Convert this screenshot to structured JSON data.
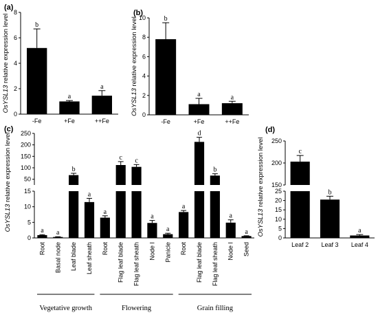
{
  "chart_data": [
    {
      "panel": "(a)",
      "type": "bar",
      "ylabel_italic": "OsYSL13",
      "ylabel_rest": " relative expression level",
      "categories": [
        "-Fe",
        "+Fe",
        "++Fe"
      ],
      "values": [
        5.2,
        1.0,
        1.45
      ],
      "errors": [
        1.5,
        0.07,
        0.4
      ],
      "significance": [
        "b",
        "a",
        "a"
      ],
      "ylim": [
        0,
        8
      ],
      "yticks": [
        "0",
        "2",
        "4",
        "6",
        "8"
      ]
    },
    {
      "panel": "(b)",
      "type": "bar",
      "ylabel_italic": "OsYSL13",
      "ylabel_rest": " relative expression level",
      "categories": [
        "-Fe",
        "+Fe",
        "++Fe"
      ],
      "values": [
        7.8,
        1.1,
        1.2
      ],
      "errors": [
        1.7,
        0.6,
        0.2
      ],
      "significance": [
        "b",
        "a",
        "a"
      ],
      "ylim": [
        0,
        10
      ],
      "yticks": [
        "0",
        "2",
        "4",
        "6",
        "8",
        "10"
      ]
    },
    {
      "panel": "(c)",
      "type": "bar",
      "axis_break": true,
      "ylabel_italic": "OsYSL13",
      "ylabel_rest": " relative expression level",
      "categories": [
        "Root",
        "Basal node",
        "Leaf blade",
        "Leaf sheath",
        "Root",
        "Flag leaf blade",
        "Flag leaf sheath",
        "Node I",
        "Panicle",
        "Root",
        "Flag leaf blade",
        "Flag leaf sheath",
        "Node I",
        "Seed"
      ],
      "values": [
        0.9,
        0.3,
        68,
        11.5,
        6.5,
        112,
        104,
        4.8,
        1.2,
        8.3,
        213,
        66,
        4.9,
        0.6
      ],
      "errors": [
        0.15,
        0.1,
        8,
        1.2,
        0.6,
        15,
        10,
        0.8,
        0.3,
        0.5,
        20,
        8,
        0.9,
        0.1
      ],
      "significance": [
        "a",
        "a",
        "b",
        "a",
        "a",
        "c",
        "c",
        "a",
        "a",
        "a",
        "d",
        "b",
        "a",
        "a"
      ],
      "ylim_lower": [
        0,
        15
      ],
      "yticks_lower": [
        "0",
        "5",
        "10",
        "15"
      ],
      "ylim_upper": [
        25,
        250
      ],
      "yticks_upper": [
        "50",
        "100",
        "150",
        "200",
        "250"
      ],
      "groups": [
        {
          "label": "Vegetative growth",
          "from": 0,
          "to": 3
        },
        {
          "label": "Flowering",
          "from": 4,
          "to": 8
        },
        {
          "label": "Grain filling",
          "from": 9,
          "to": 13
        }
      ]
    },
    {
      "panel": "(d)",
      "type": "bar",
      "axis_break": true,
      "ylabel_italic": "OsYSL13",
      "ylabel_rest": " relative expression level",
      "categories": [
        "Leaf 2",
        "Leaf 3",
        "Leaf 4"
      ],
      "values": [
        203,
        20.5,
        1.3
      ],
      "errors": [
        14,
        1.8,
        0.5
      ],
      "significance": [
        "c",
        "b",
        "a"
      ],
      "ylim_lower": [
        0,
        25
      ],
      "yticks_lower": [
        "0",
        "5",
        "10",
        "15",
        "20",
        "25"
      ],
      "ylim_upper": [
        150,
        250
      ],
      "yticks_upper": [
        "150",
        "200",
        "250"
      ]
    }
  ]
}
